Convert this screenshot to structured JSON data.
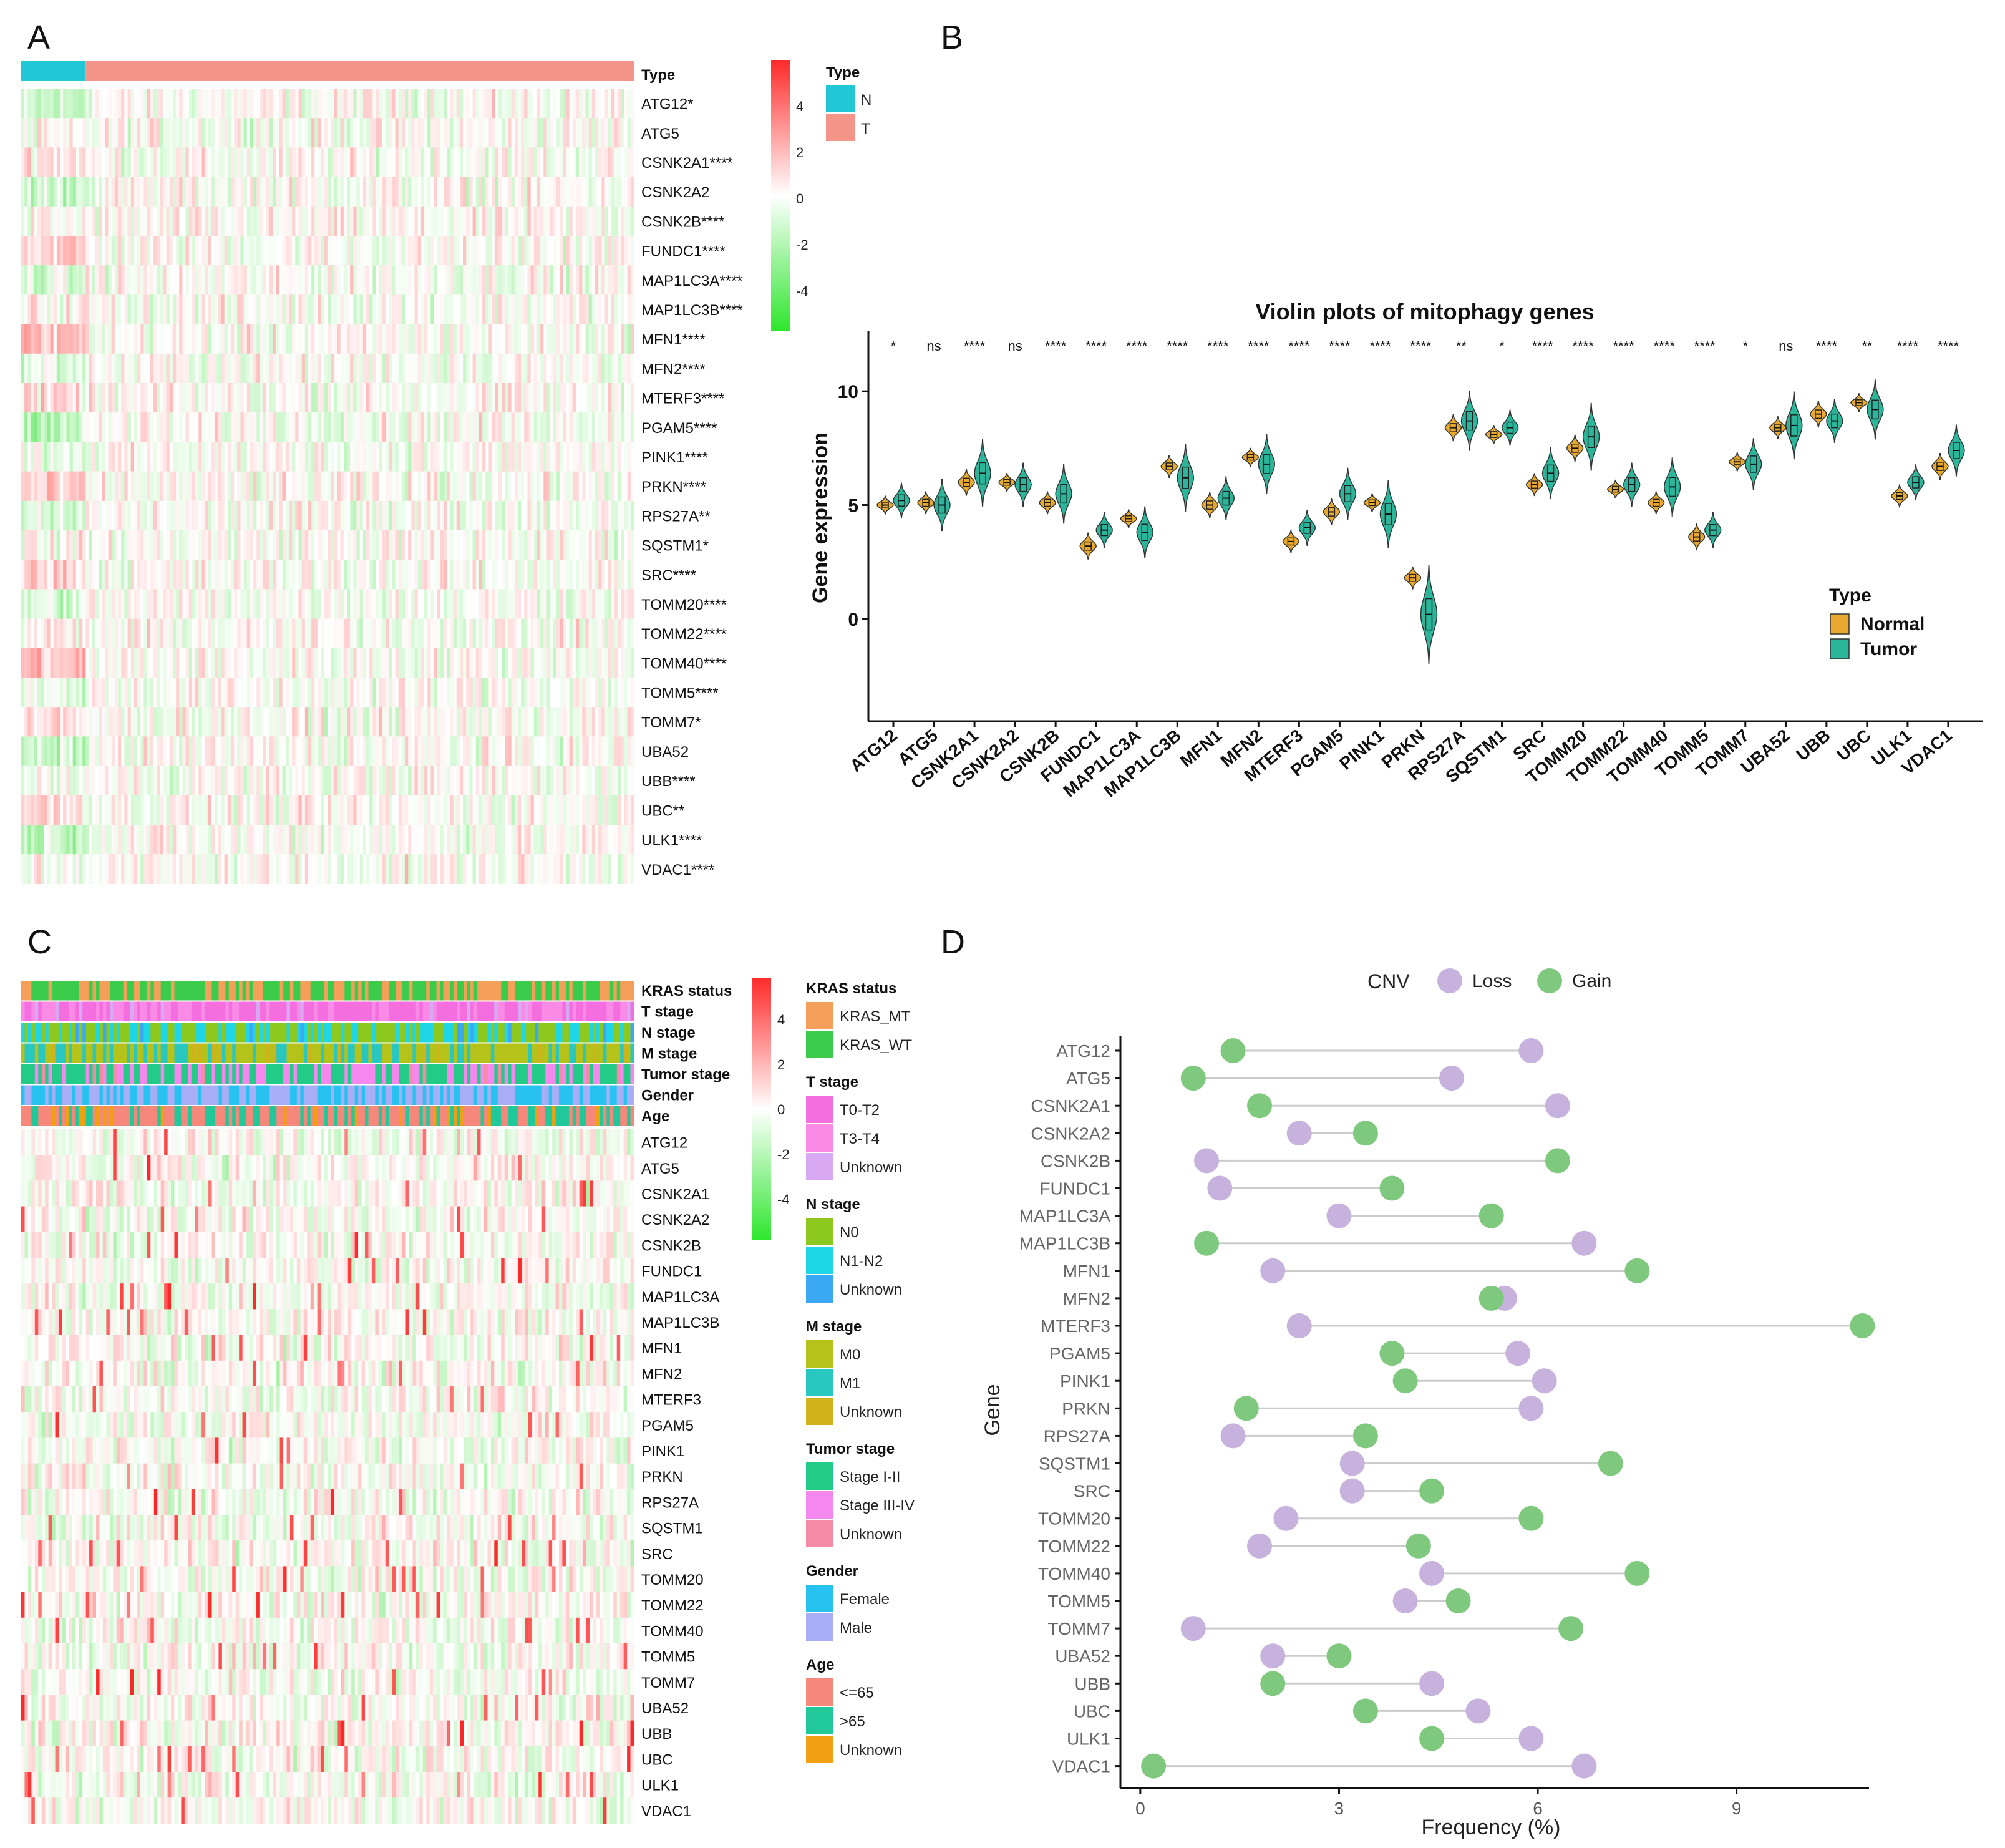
{
  "panels": {
    "A": "A",
    "B": "B",
    "C": "C",
    "D": "D"
  },
  "chart_data": [
    {
      "panel": "A",
      "type": "heatmap",
      "annotation_label": "Type",
      "row_labels": [
        "ATG12*",
        "ATG5",
        "CSNK2A1****",
        "CSNK2A2",
        "CSNK2B****",
        "FUNDC1****",
        "MAP1LC3A****",
        "MAP1LC3B****",
        "MFN1****",
        "MFN2****",
        "MTERF3****",
        "PGAM5****",
        "PINK1****",
        "PRKN****",
        "RPS27A**",
        "SQSTM1*",
        "SRC****",
        "TOMM20****",
        "TOMM22****",
        "TOMM40****",
        "TOMM5****",
        "TOMM7*",
        "UBA52",
        "UBB****",
        "UBC**",
        "ULK1****",
        "VDAC1****"
      ],
      "normal_fraction": 0.105,
      "colorbar": {
        "ticks": [
          "4",
          "2",
          "0",
          "-2",
          "-4"
        ],
        "high_color": "#ff2a2a",
        "mid_color": "#ffffff",
        "low_color": "#2ee62e"
      },
      "legend": {
        "title": "Type",
        "items": [
          {
            "label": "N",
            "color": "#22c7d6"
          },
          {
            "label": "T",
            "color": "#f5958a"
          }
        ]
      }
    },
    {
      "panel": "B",
      "type": "violin",
      "title": "Violin plots of mitophagy genes",
      "ylabel": "Gene expression",
      "ylim": [
        -4.5,
        12.5
      ],
      "yticks": [
        0,
        5,
        10
      ],
      "categories": [
        "ATG12",
        "ATG5",
        "CSNK2A1",
        "CSNK2A2",
        "CSNK2B",
        "FUNDC1",
        "MAP1LC3A",
        "MAP1LC3B",
        "MFN1",
        "MFN2",
        "MTERF3",
        "PGAM5",
        "PINK1",
        "PRKN",
        "RPS27A",
        "SQSTM1",
        "SRC",
        "TOMM20",
        "TOMM22",
        "TOMM40",
        "TOMM5",
        "TOMM7",
        "UBA52",
        "UBB",
        "UBC",
        "ULK1",
        "VDAC1"
      ],
      "significance": [
        "*",
        "ns",
        "****",
        "ns",
        "****",
        "****",
        "****",
        "****",
        "****",
        "****",
        "****",
        "****",
        "****",
        "****",
        "**",
        "*",
        "****",
        "****",
        "****",
        "****",
        "****",
        "*",
        "ns",
        "****",
        "**",
        "****",
        "****"
      ],
      "series": [
        {
          "name": "Normal",
          "color": "#e8a92e",
          "medians": [
            5.0,
            5.1,
            6.0,
            6.0,
            5.1,
            3.2,
            4.4,
            6.7,
            5.0,
            7.1,
            3.4,
            4.7,
            5.1,
            1.8,
            8.4,
            8.1,
            5.9,
            7.5,
            5.7,
            5.1,
            3.6,
            6.9,
            8.4,
            9.0,
            9.5,
            5.4,
            6.7
          ]
        },
        {
          "name": "Tumor",
          "color": "#2bb59a",
          "medians": [
            5.2,
            5.0,
            6.4,
            5.9,
            5.5,
            3.9,
            3.8,
            6.2,
            5.3,
            6.8,
            4.0,
            5.5,
            4.6,
            0.2,
            8.7,
            8.4,
            6.4,
            8.0,
            5.9,
            5.8,
            3.9,
            6.8,
            8.5,
            8.7,
            9.2,
            6.0,
            7.4
          ]
        }
      ],
      "legend_title": "Type"
    },
    {
      "panel": "C",
      "type": "heatmap",
      "annotation_tracks": [
        "KRAS status",
        "T stage",
        "N stage",
        "M stage",
        "Tumor stage",
        "Gender",
        "Age"
      ],
      "row_labels": [
        "ATG12",
        "ATG5",
        "CSNK2A1",
        "CSNK2A2",
        "CSNK2B",
        "FUNDC1",
        "MAP1LC3A",
        "MAP1LC3B",
        "MFN1",
        "MFN2",
        "MTERF3",
        "PGAM5",
        "PINK1",
        "PRKN",
        "RPS27A",
        "SQSTM1",
        "SRC",
        "TOMM20",
        "TOMM22",
        "TOMM40",
        "TOMM5",
        "TOMM7",
        "UBA52",
        "UBB",
        "UBC",
        "ULK1",
        "VDAC1"
      ],
      "colorbar": {
        "ticks": [
          "4",
          "2",
          "0",
          "-2",
          "-4"
        ]
      },
      "legends": [
        {
          "title": "KRAS status",
          "items": [
            {
              "label": "KRAS_MT",
              "color": "#f5a05a"
            },
            {
              "label": "KRAS_WT",
              "color": "#3ccc4c"
            }
          ]
        },
        {
          "title": "T stage",
          "items": [
            {
              "label": "T0-T2",
              "color": "#f46ee0"
            },
            {
              "label": "T3-T4",
              "color": "#f98ae6"
            },
            {
              "label": "Unknown",
              "color": "#d8a8f2"
            }
          ]
        },
        {
          "title": "N stage",
          "items": [
            {
              "label": "N0",
              "color": "#8cc81e"
            },
            {
              "label": "N1-N2",
              "color": "#1ed6e6"
            },
            {
              "label": "Unknown",
              "color": "#3aa8f2"
            }
          ]
        },
        {
          "title": "M stage",
          "items": [
            {
              "label": "M0",
              "color": "#b5c21a"
            },
            {
              "label": "M1",
              "color": "#28c8c0"
            },
            {
              "label": "Unknown",
              "color": "#d1b21a"
            }
          ]
        },
        {
          "title": "Tumor stage",
          "items": [
            {
              "label": "Stage I-II",
              "color": "#22cc88"
            },
            {
              "label": "Stage III-IV",
              "color": "#f588ee"
            },
            {
              "label": "Unknown",
              "color": "#f58aa6"
            }
          ]
        },
        {
          "title": "Gender",
          "items": [
            {
              "label": "Female",
              "color": "#28c2f0"
            },
            {
              "label": "Male",
              "color": "#a8aef5"
            }
          ]
        },
        {
          "title": "Age",
          "items": [
            {
              "label": "<=65",
              "color": "#f5887a"
            },
            {
              "label": ">65",
              "color": "#20c89a"
            },
            {
              "label": "Unknown",
              "color": "#f0a010"
            }
          ]
        }
      ]
    },
    {
      "panel": "D",
      "type": "dumbbell",
      "xlabel": "Frequency (%)",
      "ylabel": "Gene",
      "xlim": [
        -0.3,
        11.0
      ],
      "xticks": [
        0,
        3,
        6,
        9
      ],
      "legend_title": "CNV",
      "series": [
        {
          "name": "Loss",
          "color": "#c6b2dd"
        },
        {
          "name": "Gain",
          "color": "#7fc97f"
        }
      ],
      "genes": [
        "ATG12",
        "ATG5",
        "CSNK2A1",
        "CSNK2A2",
        "CSNK2B",
        "FUNDC1",
        "MAP1LC3A",
        "MAP1LC3B",
        "MFN1",
        "MFN2",
        "MTERF3",
        "PGAM5",
        "PINK1",
        "PRKN",
        "RPS27A",
        "SQSTM1",
        "SRC",
        "TOMM20",
        "TOMM22",
        "TOMM40",
        "TOMM5",
        "TOMM7",
        "UBA52",
        "UBB",
        "UBC",
        "ULK1",
        "VDAC1"
      ],
      "loss": [
        5.9,
        4.7,
        6.3,
        2.4,
        1.0,
        1.2,
        3.0,
        6.7,
        2.0,
        5.5,
        2.4,
        5.7,
        6.1,
        5.9,
        1.4,
        3.2,
        3.2,
        2.2,
        1.8,
        4.4,
        4.0,
        0.8,
        2.0,
        4.4,
        5.1,
        5.9,
        6.7
      ],
      "gain": [
        1.4,
        0.8,
        1.8,
        3.4,
        6.3,
        3.8,
        5.3,
        1.0,
        7.5,
        5.3,
        10.9,
        3.8,
        4.0,
        1.6,
        3.4,
        7.1,
        4.4,
        5.9,
        4.2,
        7.5,
        4.8,
        6.5,
        3.0,
        2.0,
        3.4,
        4.4,
        0.2
      ]
    }
  ]
}
